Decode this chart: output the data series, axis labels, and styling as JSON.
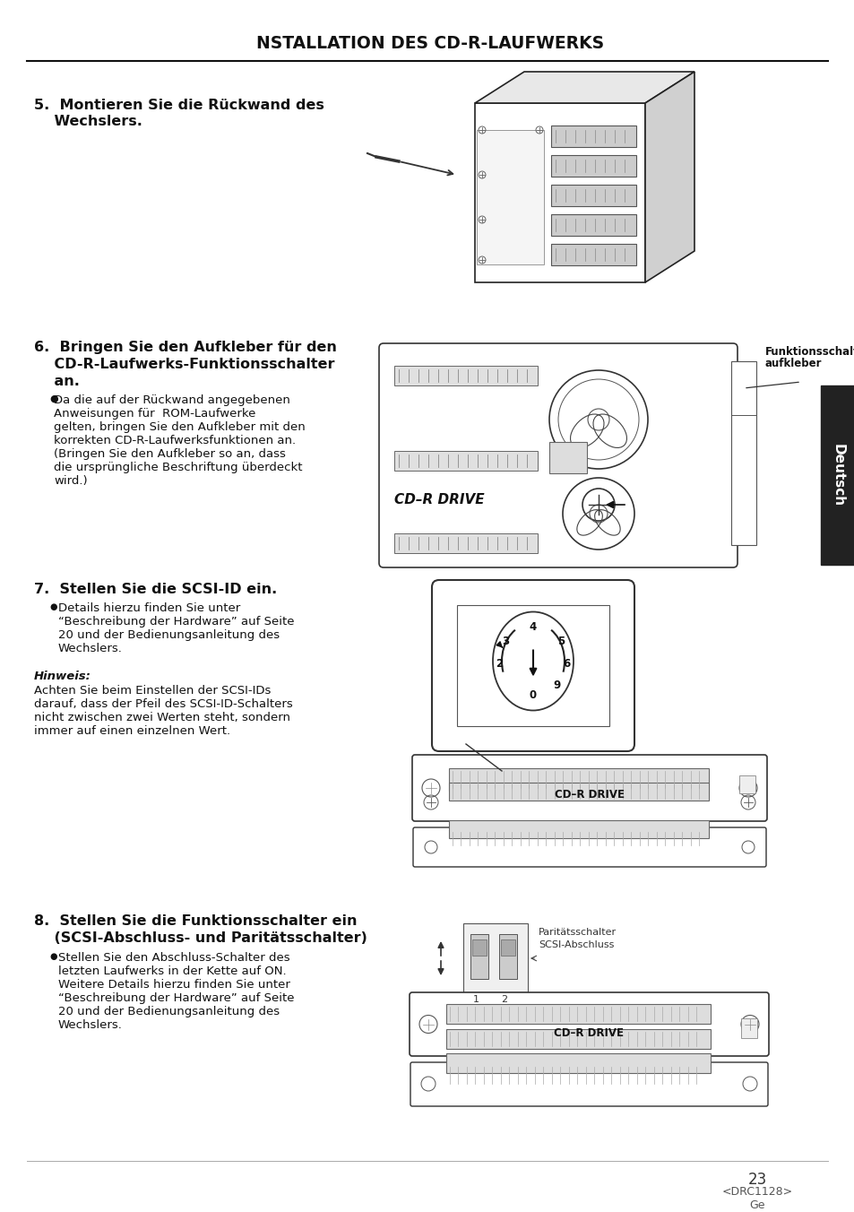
{
  "title": "NSTALLATION DES CD-R-LAUFWERKS",
  "bg_color": "#ffffff",
  "footer_page": "23",
  "footer_code": "<DRC1128>",
  "footer_lang": "Ge",
  "section5_h1": "5.  Montieren Sie die Rückwand des",
  "section5_h2": "    Wechslers.",
  "section6_h1": "6.  Bringen Sie den Aufkleber für den",
  "section6_h2": "    CD-R-Laufwerks-Funktionsschalter",
  "section6_h3": "    an.",
  "section6_b1": "    Da die auf der Rückwand angegebenen",
  "section6_b2": "    Anweisungen für  ROM-Laufwerke",
  "section6_b3": "    gelten, bringen Sie den Aufkleber mit den",
  "section6_b4": "    korrekten CD-R-Laufwerksfunktionen an.",
  "section6_b5": "    (Bringen Sie den Aufkleber so an, dass",
  "section6_b6": "    die ursprüngliche Beschriftung überdeckt",
  "section6_b7": "    wird.)",
  "section7_h1": "7.  Stellen Sie die SCSI-ID ein.",
  "section7_b1": "    Details hierzu finden Sie unter",
  "section7_b2": "    “Beschreibung der Hardware” auf Seite",
  "section7_b3": "    20 und der Bedienungsanleitung des",
  "section7_b4": "    Wechslers.",
  "section7_note_t": "Hinweis:",
  "section7_note1": "Achten Sie beim Einstellen der SCSI-IDs",
  "section7_note2": "darauf, dass der Pfeil des SCSI-ID-Schalters",
  "section7_note3": "nicht zwischen zwei Werten steht, sondern",
  "section7_note4": "immer auf einen einzelnen Wert.",
  "section8_h1": "8.  Stellen Sie die Funktionsschalter ein",
  "section8_h2": "    (SCSI-Abschluss- und Paritätsschalter)",
  "section8_b1": "    Stellen Sie den Abschluss-Schalter des",
  "section8_b2": "    letzten Laufwerks in der Kette auf ON.",
  "section8_b3": "    Weitere Details hierzu finden Sie unter",
  "section8_b4": "    “Beschreibung der Hardware” auf Seite",
  "section8_b5": "    20 und der Bedienungsanleitung des",
  "section8_b6": "    Wechslers.",
  "fig6_ann1": "Funktionsschalter-",
  "fig6_ann2": "aufkleber",
  "fig6_cdr": "CD–R DRIVE",
  "fig7_cdr": "CD–R DRIVE",
  "fig8_ann1": "Paritätsschalter",
  "fig8_ann2": "SCSI-Abschluss",
  "fig8_cdr": "CD–R DRIVE"
}
